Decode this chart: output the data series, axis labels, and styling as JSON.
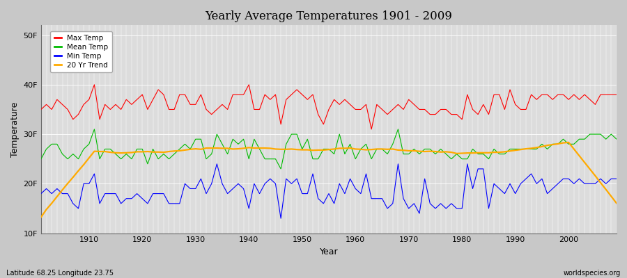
{
  "title": "Yearly Average Temperatures 1901 - 2009",
  "xlabel": "Year",
  "ylabel": "Temperature",
  "footer_left": "Latitude 68.25 Longitude 23.75",
  "footer_right": "worldspecies.org",
  "years_start": 1901,
  "years_end": 2009,
  "yticks": [
    10,
    20,
    30,
    40,
    50
  ],
  "ytick_labels": [
    "10F",
    "20F",
    "30F",
    "40F",
    "50F"
  ],
  "ylim": [
    10,
    52
  ],
  "xlim": [
    1901,
    2009
  ],
  "legend_labels": [
    "Max Temp",
    "Mean Temp",
    "Min Temp",
    "20 Yr Trend"
  ],
  "colors": {
    "max": "#ff0000",
    "mean": "#00bb00",
    "min": "#0000ff",
    "trend": "#ffaa00",
    "fig_bg": "#c8c8c8",
    "plot_bg": "#dcdcdc"
  },
  "max_temps": [
    35,
    36,
    35,
    37,
    36,
    35,
    33,
    34,
    36,
    37,
    40,
    33,
    36,
    35,
    36,
    35,
    37,
    36,
    37,
    38,
    35,
    37,
    39,
    38,
    35,
    35,
    38,
    38,
    36,
    36,
    38,
    35,
    34,
    35,
    36,
    35,
    38,
    38,
    38,
    40,
    35,
    35,
    38,
    37,
    38,
    32,
    37,
    38,
    39,
    38,
    37,
    38,
    34,
    32,
    35,
    37,
    36,
    37,
    36,
    35,
    35,
    36,
    31,
    36,
    35,
    34,
    35,
    36,
    35,
    37,
    36,
    35,
    35,
    34,
    34,
    35,
    35,
    34,
    34,
    33,
    38,
    35,
    34,
    36,
    34,
    38,
    38,
    35,
    39,
    36,
    35,
    35,
    38,
    37,
    38,
    38,
    37,
    38,
    38,
    37,
    38,
    37,
    38,
    37,
    36,
    38,
    38,
    38,
    38
  ],
  "mean_temps": [
    25,
    27,
    28,
    28,
    26,
    25,
    26,
    25,
    27,
    28,
    31,
    25,
    27,
    27,
    26,
    25,
    26,
    25,
    27,
    27,
    24,
    27,
    25,
    26,
    25,
    26,
    27,
    28,
    27,
    29,
    29,
    25,
    26,
    30,
    28,
    26,
    29,
    28,
    29,
    25,
    29,
    27,
    25,
    25,
    25,
    23,
    28,
    30,
    30,
    27,
    29,
    25,
    25,
    27,
    27,
    26,
    30,
    26,
    28,
    25,
    27,
    28,
    25,
    27,
    27,
    26,
    28,
    31,
    26,
    26,
    27,
    26,
    27,
    27,
    26,
    27,
    26,
    25,
    26,
    25,
    25,
    27,
    26,
    26,
    25,
    27,
    26,
    26,
    27,
    27,
    27,
    27,
    27,
    27,
    28,
    27,
    28,
    28,
    29,
    28,
    28,
    29,
    29,
    30,
    30,
    30,
    29,
    30,
    29
  ],
  "min_temps": [
    18,
    19,
    18,
    19,
    18,
    18,
    16,
    15,
    20,
    20,
    22,
    16,
    18,
    18,
    18,
    16,
    17,
    17,
    18,
    17,
    16,
    18,
    18,
    18,
    16,
    16,
    16,
    20,
    19,
    19,
    21,
    18,
    20,
    24,
    20,
    18,
    19,
    20,
    19,
    15,
    20,
    18,
    20,
    21,
    20,
    13,
    21,
    20,
    21,
    18,
    18,
    22,
    17,
    16,
    18,
    16,
    20,
    18,
    21,
    19,
    18,
    22,
    17,
    17,
    17,
    15,
    16,
    24,
    17,
    15,
    16,
    14,
    21,
    16,
    15,
    16,
    15,
    16,
    15,
    15,
    24,
    19,
    23,
    23,
    15,
    20,
    19,
    18,
    20,
    18,
    20,
    21,
    22,
    20,
    21,
    18,
    19,
    20,
    21,
    21,
    20,
    21,
    20,
    20,
    20,
    21,
    20,
    21,
    21
  ]
}
